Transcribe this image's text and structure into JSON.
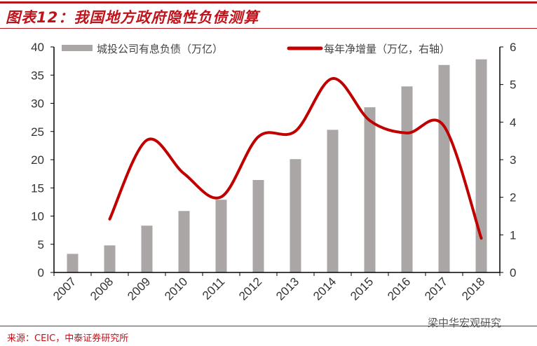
{
  "title": "图表12：我国地方政府隐性负债测算",
  "source": "来源：CEIC，中泰证券研究所",
  "watermark": "梁中华宏观研究",
  "chart_data": {
    "type": "bar+line",
    "categories": [
      "2007",
      "2008",
      "2009",
      "2010",
      "2011",
      "2012",
      "2013",
      "2014",
      "2015",
      "2016",
      "2017",
      "2018"
    ],
    "series": [
      {
        "name": "城投公司有息负债（万亿）",
        "type": "bar",
        "axis": "left",
        "color": "#aaa6a6",
        "values": [
          3.3,
          4.8,
          8.3,
          10.9,
          12.9,
          16.4,
          20.1,
          25.3,
          29.3,
          33.0,
          36.8,
          37.8
        ]
      },
      {
        "name": "每年净增量（万亿，右轴）",
        "type": "line",
        "axis": "right",
        "color": "#c00000",
        "smooth": true,
        "values": [
          null,
          1.42,
          3.52,
          2.63,
          2.01,
          3.61,
          3.76,
          5.16,
          4.04,
          3.71,
          3.89,
          0.91
        ]
      }
    ],
    "yleft": {
      "lim": [
        0,
        40
      ],
      "ticks": [
        0,
        5,
        10,
        15,
        20,
        25,
        30,
        35,
        40
      ]
    },
    "yright": {
      "lim": [
        0,
        6
      ],
      "ticks": [
        0,
        1,
        2,
        3,
        4,
        5,
        6
      ]
    },
    "legend": "top",
    "grid": false
  }
}
